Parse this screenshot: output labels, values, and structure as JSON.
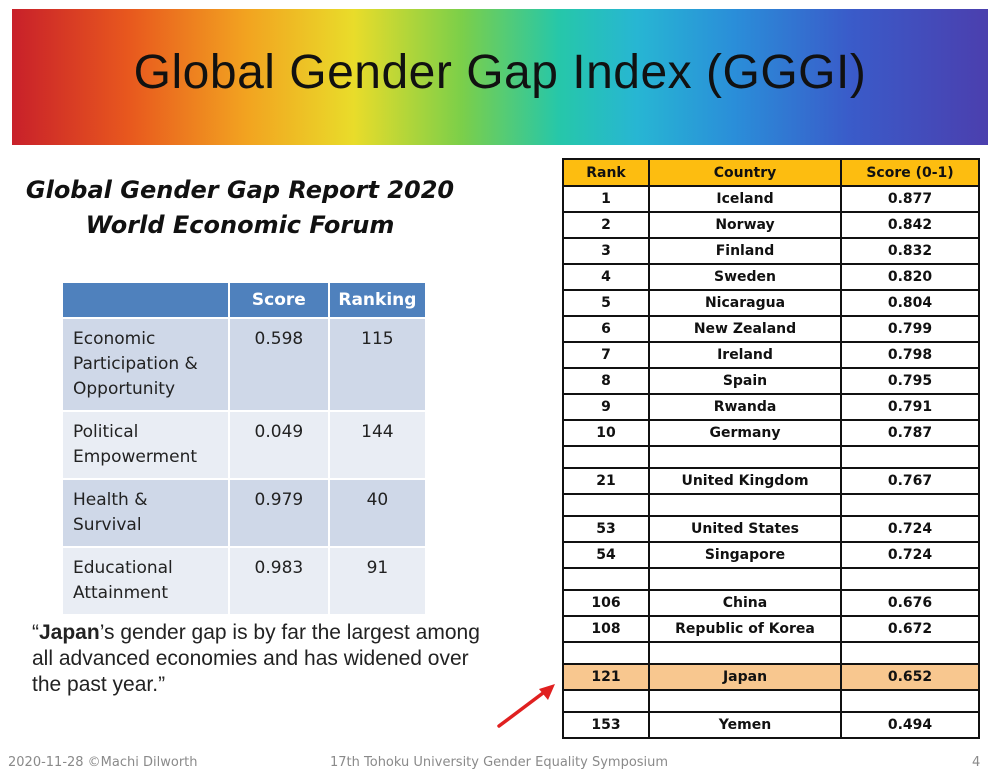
{
  "banner": {
    "title": "Global Gender Gap Index (GGGI)"
  },
  "report": {
    "line1": "Global Gender Gap Report 2020",
    "line2": "World Economic Forum"
  },
  "score_table": {
    "headers": [
      "",
      "Score",
      "Ranking"
    ],
    "rows": [
      {
        "category": "Economic\nParticipation &\nOpportunity",
        "score": "0.598",
        "ranking": "115"
      },
      {
        "category": "Political\nEmpowerment",
        "score": "0.049",
        "ranking": "144"
      },
      {
        "category": "Health &\nSurvival",
        "score": "0.979",
        "ranking": "40"
      },
      {
        "category": "Educational\nAttainment",
        "score": "0.983",
        "ranking": "91"
      }
    ]
  },
  "quote": {
    "open": "“",
    "emphasis": "Japan",
    "rest": "’s gender gap is by far the largest among all advanced economies and has widened over the past year.”"
  },
  "rank_table": {
    "headers": [
      "Rank",
      "Country",
      "Score (0-1)"
    ],
    "rows": [
      {
        "rank": "1",
        "country": "Iceland",
        "score": "0.877"
      },
      {
        "rank": "2",
        "country": "Norway",
        "score": "0.842"
      },
      {
        "rank": "3",
        "country": "Finland",
        "score": "0.832"
      },
      {
        "rank": "4",
        "country": "Sweden",
        "score": "0.820"
      },
      {
        "rank": "5",
        "country": "Nicaragua",
        "score": "0.804"
      },
      {
        "rank": "6",
        "country": "New Zealand",
        "score": "0.799"
      },
      {
        "rank": "7",
        "country": "Ireland",
        "score": "0.798"
      },
      {
        "rank": "8",
        "country": "Spain",
        "score": "0.795"
      },
      {
        "rank": "9",
        "country": "Rwanda",
        "score": "0.791"
      },
      {
        "rank": "10",
        "country": "Germany",
        "score": "0.787"
      },
      {
        "rank": "",
        "country": "",
        "score": ""
      },
      {
        "rank": "21",
        "country": "United Kingdom",
        "score": "0.767"
      },
      {
        "rank": "",
        "country": "",
        "score": ""
      },
      {
        "rank": "53",
        "country": "United States",
        "score": "0.724"
      },
      {
        "rank": "54",
        "country": "Singapore",
        "score": "0.724"
      },
      {
        "rank": "",
        "country": "",
        "score": ""
      },
      {
        "rank": "106",
        "country": "China",
        "score": "0.676"
      },
      {
        "rank": "108",
        "country": "Republic of Korea",
        "score": "0.672"
      },
      {
        "rank": "",
        "country": "",
        "score": ""
      },
      {
        "rank": "121",
        "country": "Japan",
        "score": "0.652",
        "highlight": true
      },
      {
        "rank": "",
        "country": "",
        "score": ""
      },
      {
        "rank": "153",
        "country": "Yemen",
        "score": "0.494"
      }
    ]
  },
  "highlight_color": "#f8c78f",
  "header_color": "#fdbd10",
  "arrow_color": "#e02020",
  "footer": {
    "left": "2020-11-28  ©Machi Dilworth",
    "center": "17th Tohoku University Gender Equality Symposium",
    "page": "4"
  }
}
